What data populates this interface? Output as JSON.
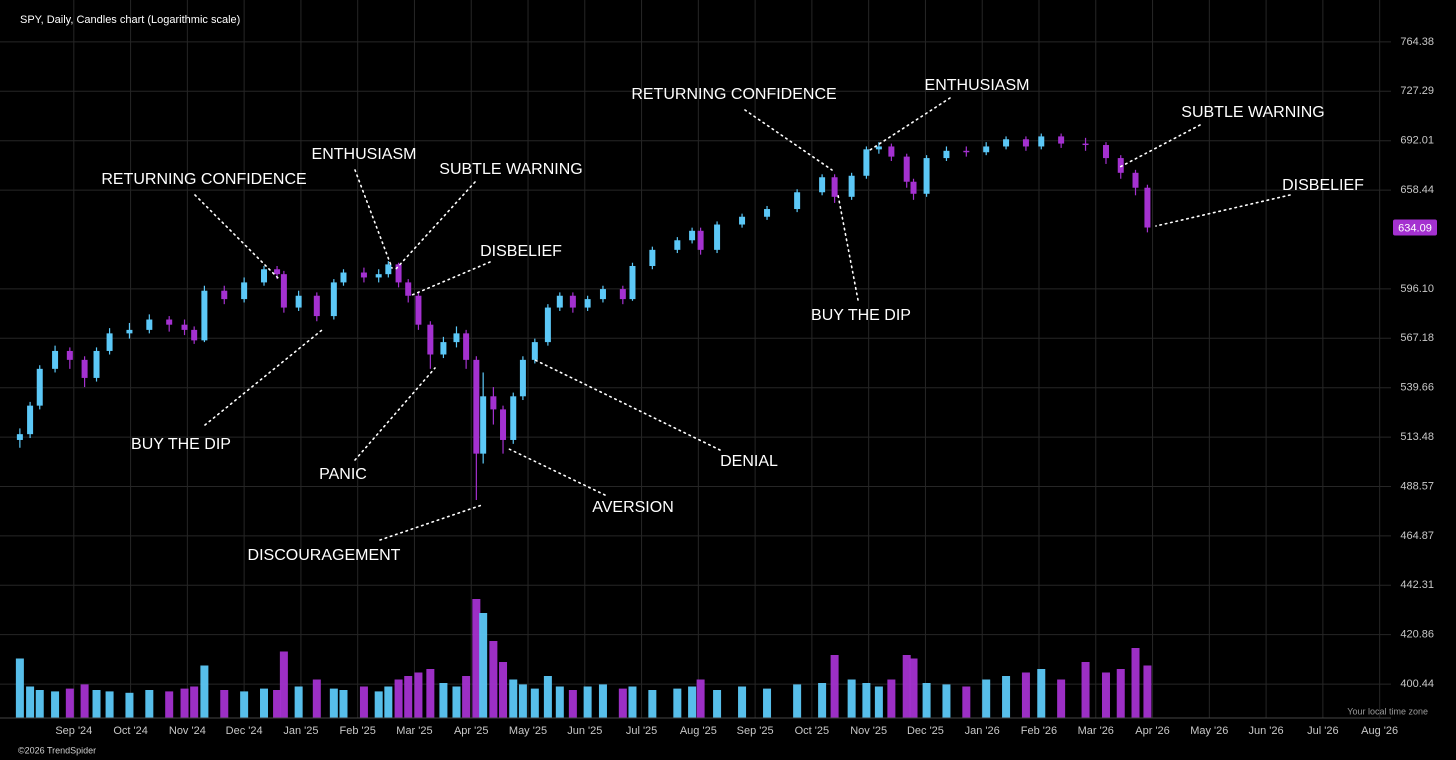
{
  "chart_data": {
    "type": "candlestick",
    "title": "SPY, Daily, Candles chart (Logarithmic scale)",
    "credit": "©2026 TrendSpider",
    "timezone_note": "Your local time zone",
    "log_scale": true,
    "grid": true,
    "up_color": "#5cc8f7",
    "down_color": "#a431d0",
    "xlim": [
      -1.3,
      23.2
    ],
    "ylim": [
      387,
      797.3
    ],
    "xticks": [
      {
        "value": 0,
        "label": "Sep '24"
      },
      {
        "value": 1,
        "label": "Oct '24"
      },
      {
        "value": 2,
        "label": "Nov '24"
      },
      {
        "value": 3,
        "label": "Dec '24"
      },
      {
        "value": 4,
        "label": "Jan '25"
      },
      {
        "value": 5,
        "label": "Feb '25"
      },
      {
        "value": 6,
        "label": "Mar '25"
      },
      {
        "value": 7,
        "label": "Apr '25"
      },
      {
        "value": 8,
        "label": "May '25"
      },
      {
        "value": 9,
        "label": "Jun '25"
      },
      {
        "value": 10,
        "label": "Jul '25"
      },
      {
        "value": 11,
        "label": "Aug '25"
      },
      {
        "value": 12,
        "label": "Sep '25"
      },
      {
        "value": 13,
        "label": "Oct '25"
      },
      {
        "value": 14,
        "label": "Nov '25"
      },
      {
        "value": 15,
        "label": "Dec '25"
      },
      {
        "value": 16,
        "label": "Jan '26"
      },
      {
        "value": 17,
        "label": "Feb '26"
      },
      {
        "value": 18,
        "label": "Mar '26"
      },
      {
        "value": 19,
        "label": "Apr '26"
      },
      {
        "value": 20,
        "label": "May '26"
      },
      {
        "value": 21,
        "label": "Jun '26"
      },
      {
        "value": 22,
        "label": "Jul '26"
      },
      {
        "value": 23,
        "label": "Aug '26"
      }
    ],
    "yticks": [
      764.38,
      727.29,
      692.01,
      658.44,
      {
        "value": 596.1,
        "label": "596.10"
      },
      567.18,
      539.66,
      513.48,
      488.57,
      464.87,
      442.31,
      420.86,
      400.44
    ],
    "x": [
      -0.95,
      -0.77,
      -0.6,
      -0.33,
      -0.07,
      0.19,
      0.4,
      0.63,
      0.98,
      1.33,
      1.68,
      1.95,
      2.12,
      2.3,
      2.65,
      3.0,
      3.35,
      3.58,
      3.7,
      3.96,
      4.28,
      4.58,
      4.75,
      5.11,
      5.37,
      5.54,
      5.72,
      5.89,
      6.07,
      6.28,
      6.51,
      6.74,
      6.91,
      7.09,
      7.21,
      7.39,
      7.56,
      7.74,
      7.91,
      8.12,
      8.35,
      8.56,
      8.79,
      9.05,
      9.32,
      9.67,
      9.84,
      10.19,
      10.63,
      10.89,
      11.04,
      11.33,
      11.77,
      12.21,
      12.74,
      13.18,
      13.4,
      13.7,
      13.96,
      14.18,
      14.4,
      14.67,
      14.79,
      15.02,
      15.37,
      15.72,
      16.07,
      16.42,
      16.77,
      17.04,
      17.39,
      17.82,
      18.18,
      18.44,
      18.7,
      18.91
    ],
    "open": [
      512,
      515,
      530,
      550,
      560,
      555,
      545,
      560,
      570,
      572,
      578,
      575,
      572,
      566,
      595,
      590,
      600,
      608,
      605,
      585,
      592,
      580,
      600,
      606,
      603,
      605,
      611,
      600,
      592,
      575,
      558,
      565,
      570,
      555,
      505,
      535,
      528,
      512,
      535,
      555,
      565,
      585,
      592,
      585,
      590,
      596,
      590,
      610,
      620,
      626,
      632,
      620,
      636,
      641,
      646,
      657,
      667,
      654,
      668,
      686,
      688,
      681,
      664,
      656,
      680,
      685,
      684,
      688,
      693,
      688,
      695,
      690,
      689,
      680,
      670,
      660
    ],
    "high": [
      518,
      532,
      552,
      563,
      562,
      557,
      562,
      573,
      576,
      581,
      580,
      578,
      574,
      598,
      598,
      603,
      610,
      610,
      607,
      595,
      594,
      602,
      608,
      609,
      608,
      613,
      612,
      602,
      594,
      577,
      568,
      574,
      572,
      557,
      548,
      540,
      530,
      537,
      557,
      567,
      587,
      594,
      594,
      592,
      598,
      598,
      612,
      622,
      628,
      634,
      634,
      638,
      643,
      648,
      659,
      669,
      669,
      670,
      688,
      691,
      690,
      683,
      666,
      682,
      688,
      688,
      691,
      695,
      695,
      697,
      697,
      694,
      691,
      682,
      672,
      662
    ],
    "low": [
      508,
      513,
      528,
      548,
      550,
      540,
      543,
      558,
      567,
      570,
      571,
      569,
      564,
      565,
      587,
      588,
      598,
      602,
      582,
      583,
      577,
      578,
      598,
      600,
      600,
      603,
      597,
      588,
      572,
      550,
      556,
      562,
      550,
      482,
      500,
      520,
      505,
      510,
      533,
      553,
      563,
      583,
      582,
      583,
      588,
      587,
      589,
      608,
      618,
      624,
      617,
      618,
      634,
      639,
      644,
      655,
      650,
      652,
      666,
      683,
      678,
      660,
      652,
      654,
      678,
      681,
      682,
      686,
      685,
      686,
      687,
      685,
      676,
      666,
      655,
      631
    ],
    "close": [
      515,
      530,
      550,
      560,
      555,
      545,
      560,
      570,
      572,
      578,
      575,
      572,
      566,
      595,
      590,
      600,
      608,
      605,
      585,
      592,
      580,
      600,
      606,
      603,
      605,
      611,
      600,
      592,
      575,
      558,
      565,
      570,
      555,
      505,
      535,
      528,
      512,
      535,
      555,
      565,
      585,
      592,
      585,
      590,
      596,
      590,
      610,
      620,
      626,
      632,
      620,
      636,
      641,
      646,
      657,
      667,
      654,
      668,
      686,
      688,
      681,
      664,
      656,
      680,
      685,
      684,
      688,
      693,
      688,
      695,
      690,
      689,
      680,
      670,
      660,
      634.09
    ],
    "volume": [
      85,
      45,
      40,
      38,
      42,
      48,
      40,
      38,
      36,
      40,
      38,
      42,
      45,
      75,
      40,
      38,
      42,
      40,
      95,
      45,
      55,
      42,
      40,
      45,
      38,
      45,
      55,
      60,
      65,
      70,
      50,
      45,
      60,
      170,
      150,
      110,
      80,
      55,
      48,
      42,
      60,
      45,
      40,
      45,
      48,
      42,
      45,
      40,
      42,
      45,
      55,
      40,
      45,
      42,
      48,
      50,
      90,
      55,
      50,
      45,
      55,
      90,
      85,
      50,
      48,
      45,
      55,
      60,
      65,
      70,
      55,
      80,
      65,
      70,
      100,
      75
    ],
    "annotations": [
      "RETURNING CONFIDENCE",
      "BUY THE DIP",
      "ENTHUSIASM",
      "SUBTLE WARNING",
      "DISBELIEF",
      "PANIC",
      "DISCOURAGEMENT",
      "AVERSION",
      "DENIAL",
      "RETURNING CONFIDENCE",
      "ENTHUSIASM",
      "BUY THE DIP",
      "SUBTLE WARNING",
      "DISBELIEF"
    ]
  }
}
